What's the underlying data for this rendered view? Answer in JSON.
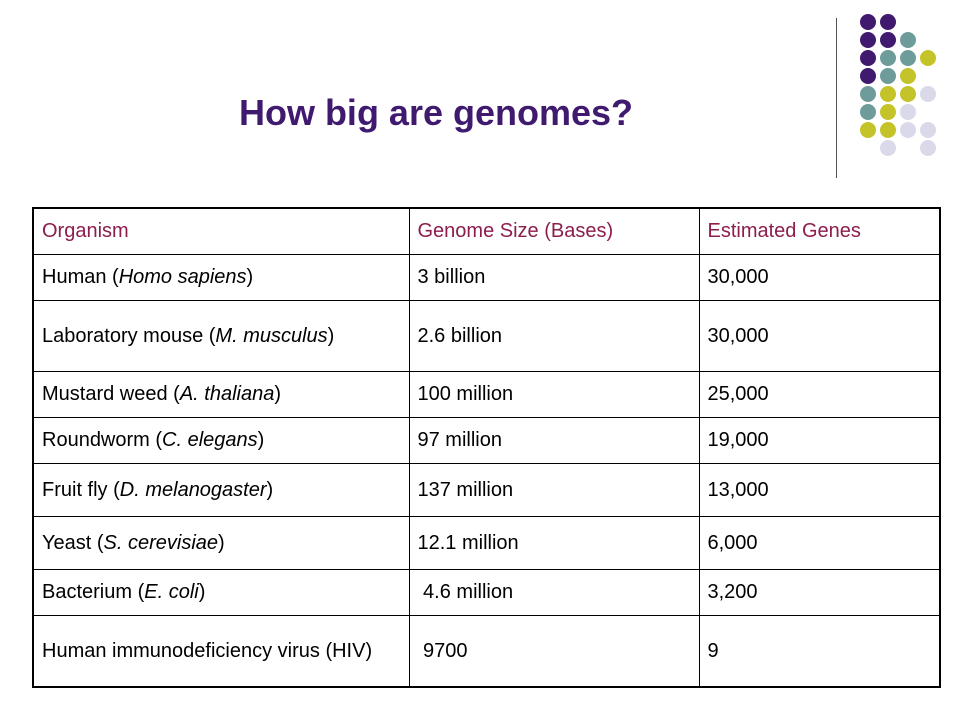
{
  "title": "How big are genomes?",
  "colors": {
    "title": "#3f1a6e",
    "header_text": "#8c1d4d",
    "dot_purple": "#3f1a6e",
    "dot_teal": "#6e9c9a",
    "dot_olive": "#c4c42a",
    "dot_lavender": "#d9d9ea"
  },
  "table": {
    "headers": [
      "Organism",
      "Genome Size (Bases)",
      "Estimated Genes"
    ],
    "rows": [
      {
        "organism_pre": "Human (",
        "organism_italic": "Homo sapiens",
        "organism_post": ")",
        "size": "3 billion",
        "genes": "30,000"
      },
      {
        "organism_pre": "Laboratory mouse (",
        "organism_italic": "M. musculus",
        "organism_post": ")",
        "size": "2.6 billion",
        "genes": "30,000"
      },
      {
        "organism_pre": "Mustard weed (",
        "organism_italic": "A. thaliana",
        "organism_post": ")",
        "size": "100 million",
        "genes": "25,000"
      },
      {
        "organism_pre": "Roundworm (",
        "organism_italic": "C. elegans",
        "organism_post": ")",
        "size": "97 million",
        "genes": "19,000"
      },
      {
        "organism_pre": "Fruit fly (",
        "organism_italic": "D. melanogaster",
        "organism_post": ")",
        "size": "137 million",
        "genes": "13,000"
      },
      {
        "organism_pre": "Yeast (",
        "organism_italic": "S. cerevisiae",
        "organism_post": ")",
        "size": "12.1 million",
        "genes": "6,000"
      },
      {
        "organism_pre": "Bacterium (",
        "organism_italic": "E. coli",
        "organism_post": ")",
        "size": " 4.6 million",
        "genes": "3,200"
      },
      {
        "organism_pre": "Human immunodeficiency virus (HIV)",
        "organism_italic": "",
        "organism_post": "",
        "size": " 9700",
        "genes": "9"
      }
    ]
  }
}
